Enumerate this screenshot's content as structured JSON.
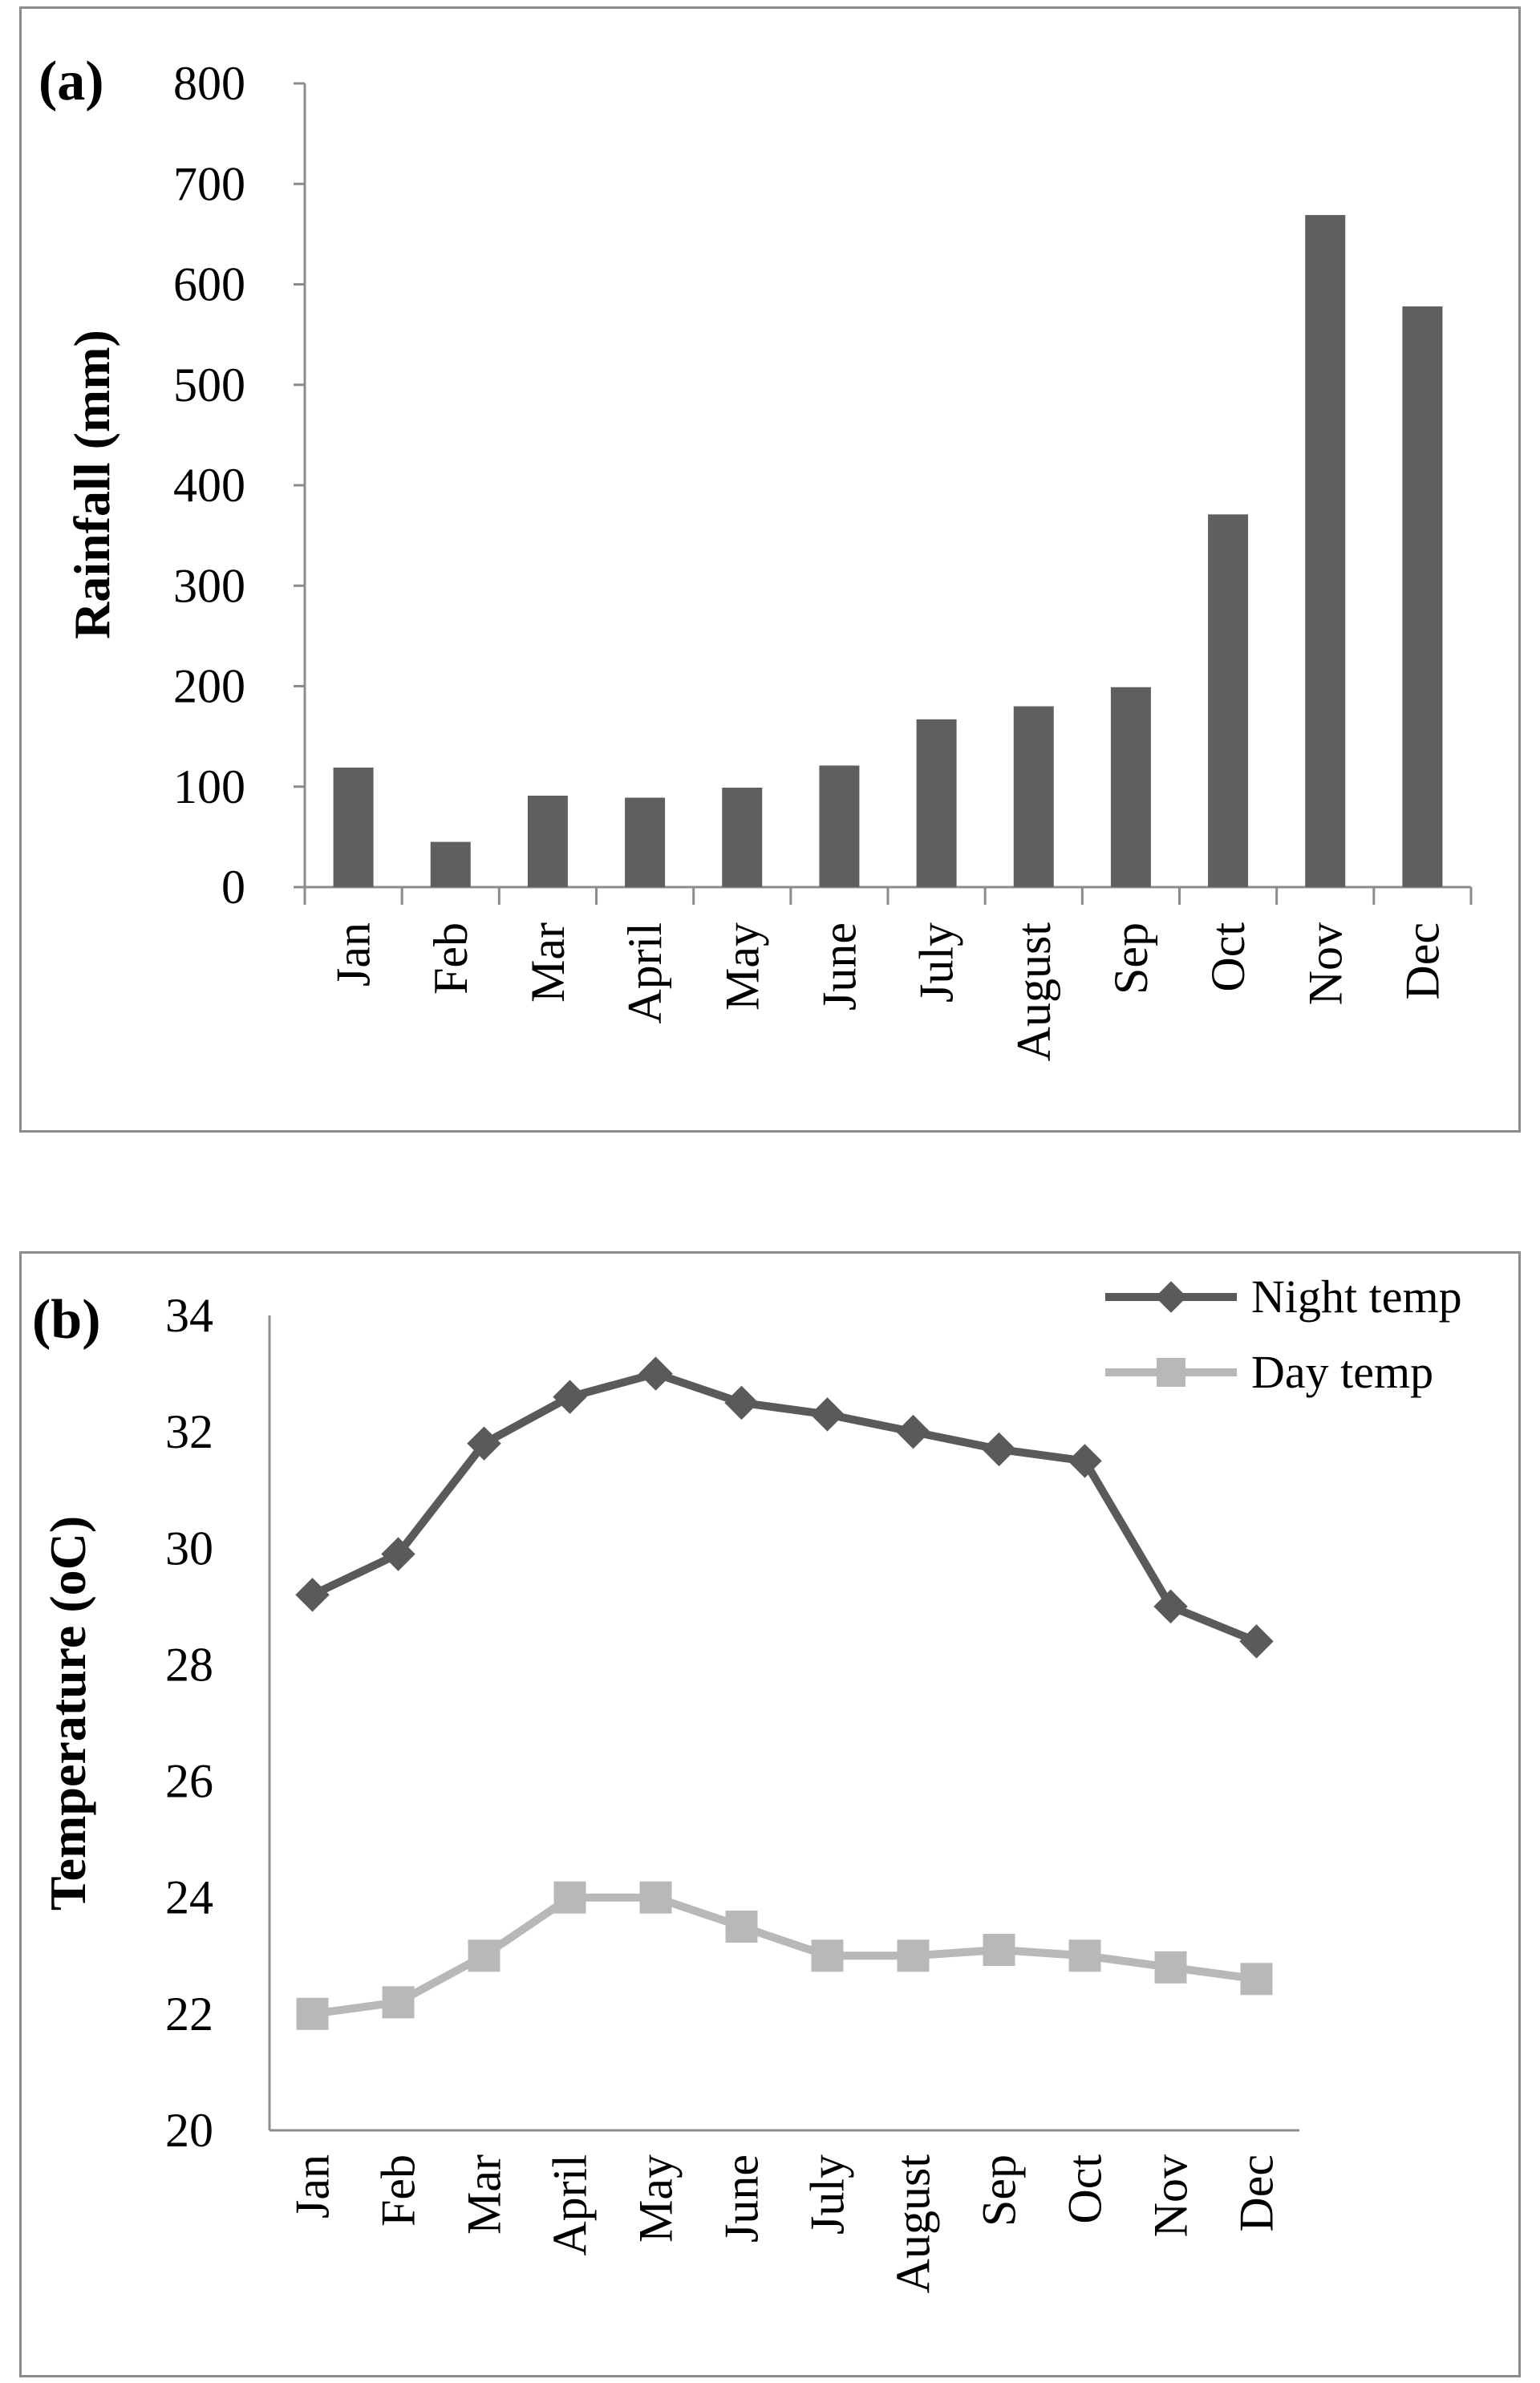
{
  "chart_data": [
    {
      "type": "bar",
      "panel_label": "(a)",
      "title": "",
      "xlabel": "",
      "ylabel": "Rainfall (mm)",
      "ylim": [
        0,
        800
      ],
      "yticks": [
        "0",
        "100",
        "200",
        "300",
        "400",
        "500",
        "600",
        "700",
        "800"
      ],
      "categories": [
        "Jan",
        "Feb",
        "Mar",
        "April",
        "May",
        "June",
        "July",
        "August",
        "Sep",
        "Oct",
        "Nov",
        "Dec"
      ],
      "series": [
        {
          "name": "Rainfall",
          "color": "#5f5f5f",
          "values": [
            119,
            45,
            91,
            89,
            99,
            121,
            167,
            180,
            199,
            371,
            669,
            578
          ]
        }
      ],
      "grid": false,
      "legend": "none"
    },
    {
      "type": "line",
      "panel_label": "(b)",
      "title": "",
      "xlabel": "",
      "ylabel": "Temperature (oC)",
      "ylim": [
        20,
        34
      ],
      "yticks": [
        "20",
        "22",
        "24",
        "26",
        "28",
        "30",
        "32",
        "34"
      ],
      "categories": [
        "Jan",
        "Feb",
        "Mar",
        "April",
        "May",
        "June",
        "July",
        "August",
        "Sep",
        "Oct",
        "Nov",
        "Dec"
      ],
      "series": [
        {
          "name": "Night temp",
          "color": "#5a5a5a",
          "marker": "diamond",
          "values": [
            29.2,
            29.9,
            31.8,
            32.6,
            33.0,
            32.5,
            32.3,
            32.0,
            31.7,
            31.5,
            29.0,
            28.4
          ]
        },
        {
          "name": "Day temp",
          "color": "#b8b8b8",
          "marker": "square",
          "values": [
            22.0,
            22.2,
            23.0,
            24.0,
            24.0,
            23.5,
            23.0,
            23.0,
            23.1,
            23.0,
            22.8,
            22.6
          ]
        }
      ],
      "grid": false,
      "legend": "top-right"
    }
  ]
}
